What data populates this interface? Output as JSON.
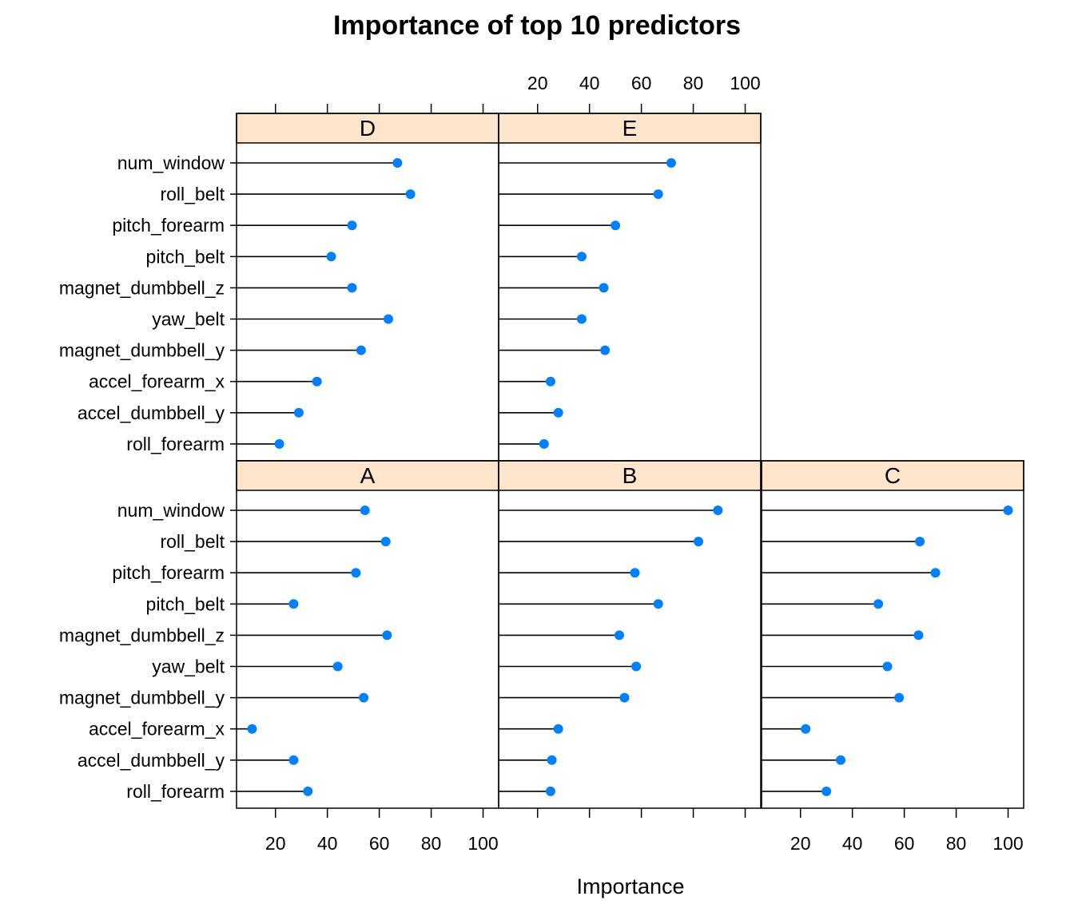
{
  "chart_data": {
    "type": "dot",
    "title": "Importance of top 10 predictors",
    "xlabel": "Importance",
    "ylabel": "",
    "xlim": [
      5,
      106
    ],
    "x_ticks": [
      "20",
      "40",
      "60",
      "80",
      "100"
    ],
    "grid": false,
    "style": {
      "point_color": "#0080ff",
      "strip_color": "#ffe5cc",
      "line_color": "#000000"
    },
    "categories": [
      "num_window",
      "roll_belt",
      "pitch_forearm",
      "pitch_belt",
      "magnet_dumbbell_z",
      "yaw_belt",
      "magnet_dumbbell_y",
      "accel_forearm_x",
      "accel_dumbbell_y",
      "roll_forearm"
    ],
    "panels": [
      {
        "name": "D",
        "values": [
          67,
          72,
          49.5,
          41.5,
          49.5,
          63.5,
          53,
          36,
          29,
          21.5
        ]
      },
      {
        "name": "E",
        "values": [
          71.5,
          66.5,
          50,
          37,
          45.5,
          37,
          46,
          25,
          28,
          22.5
        ]
      },
      {
        "name": "A",
        "values": [
          54.5,
          62.5,
          51,
          27,
          63,
          44,
          54,
          11,
          27,
          32.5
        ]
      },
      {
        "name": "B",
        "values": [
          89.5,
          82,
          57.5,
          66.5,
          51.5,
          58,
          53.5,
          28,
          25.5,
          25
        ]
      },
      {
        "name": "C",
        "values": [
          100,
          66,
          72,
          50,
          65.5,
          53.5,
          58,
          22,
          35.5,
          30
        ]
      }
    ]
  }
}
